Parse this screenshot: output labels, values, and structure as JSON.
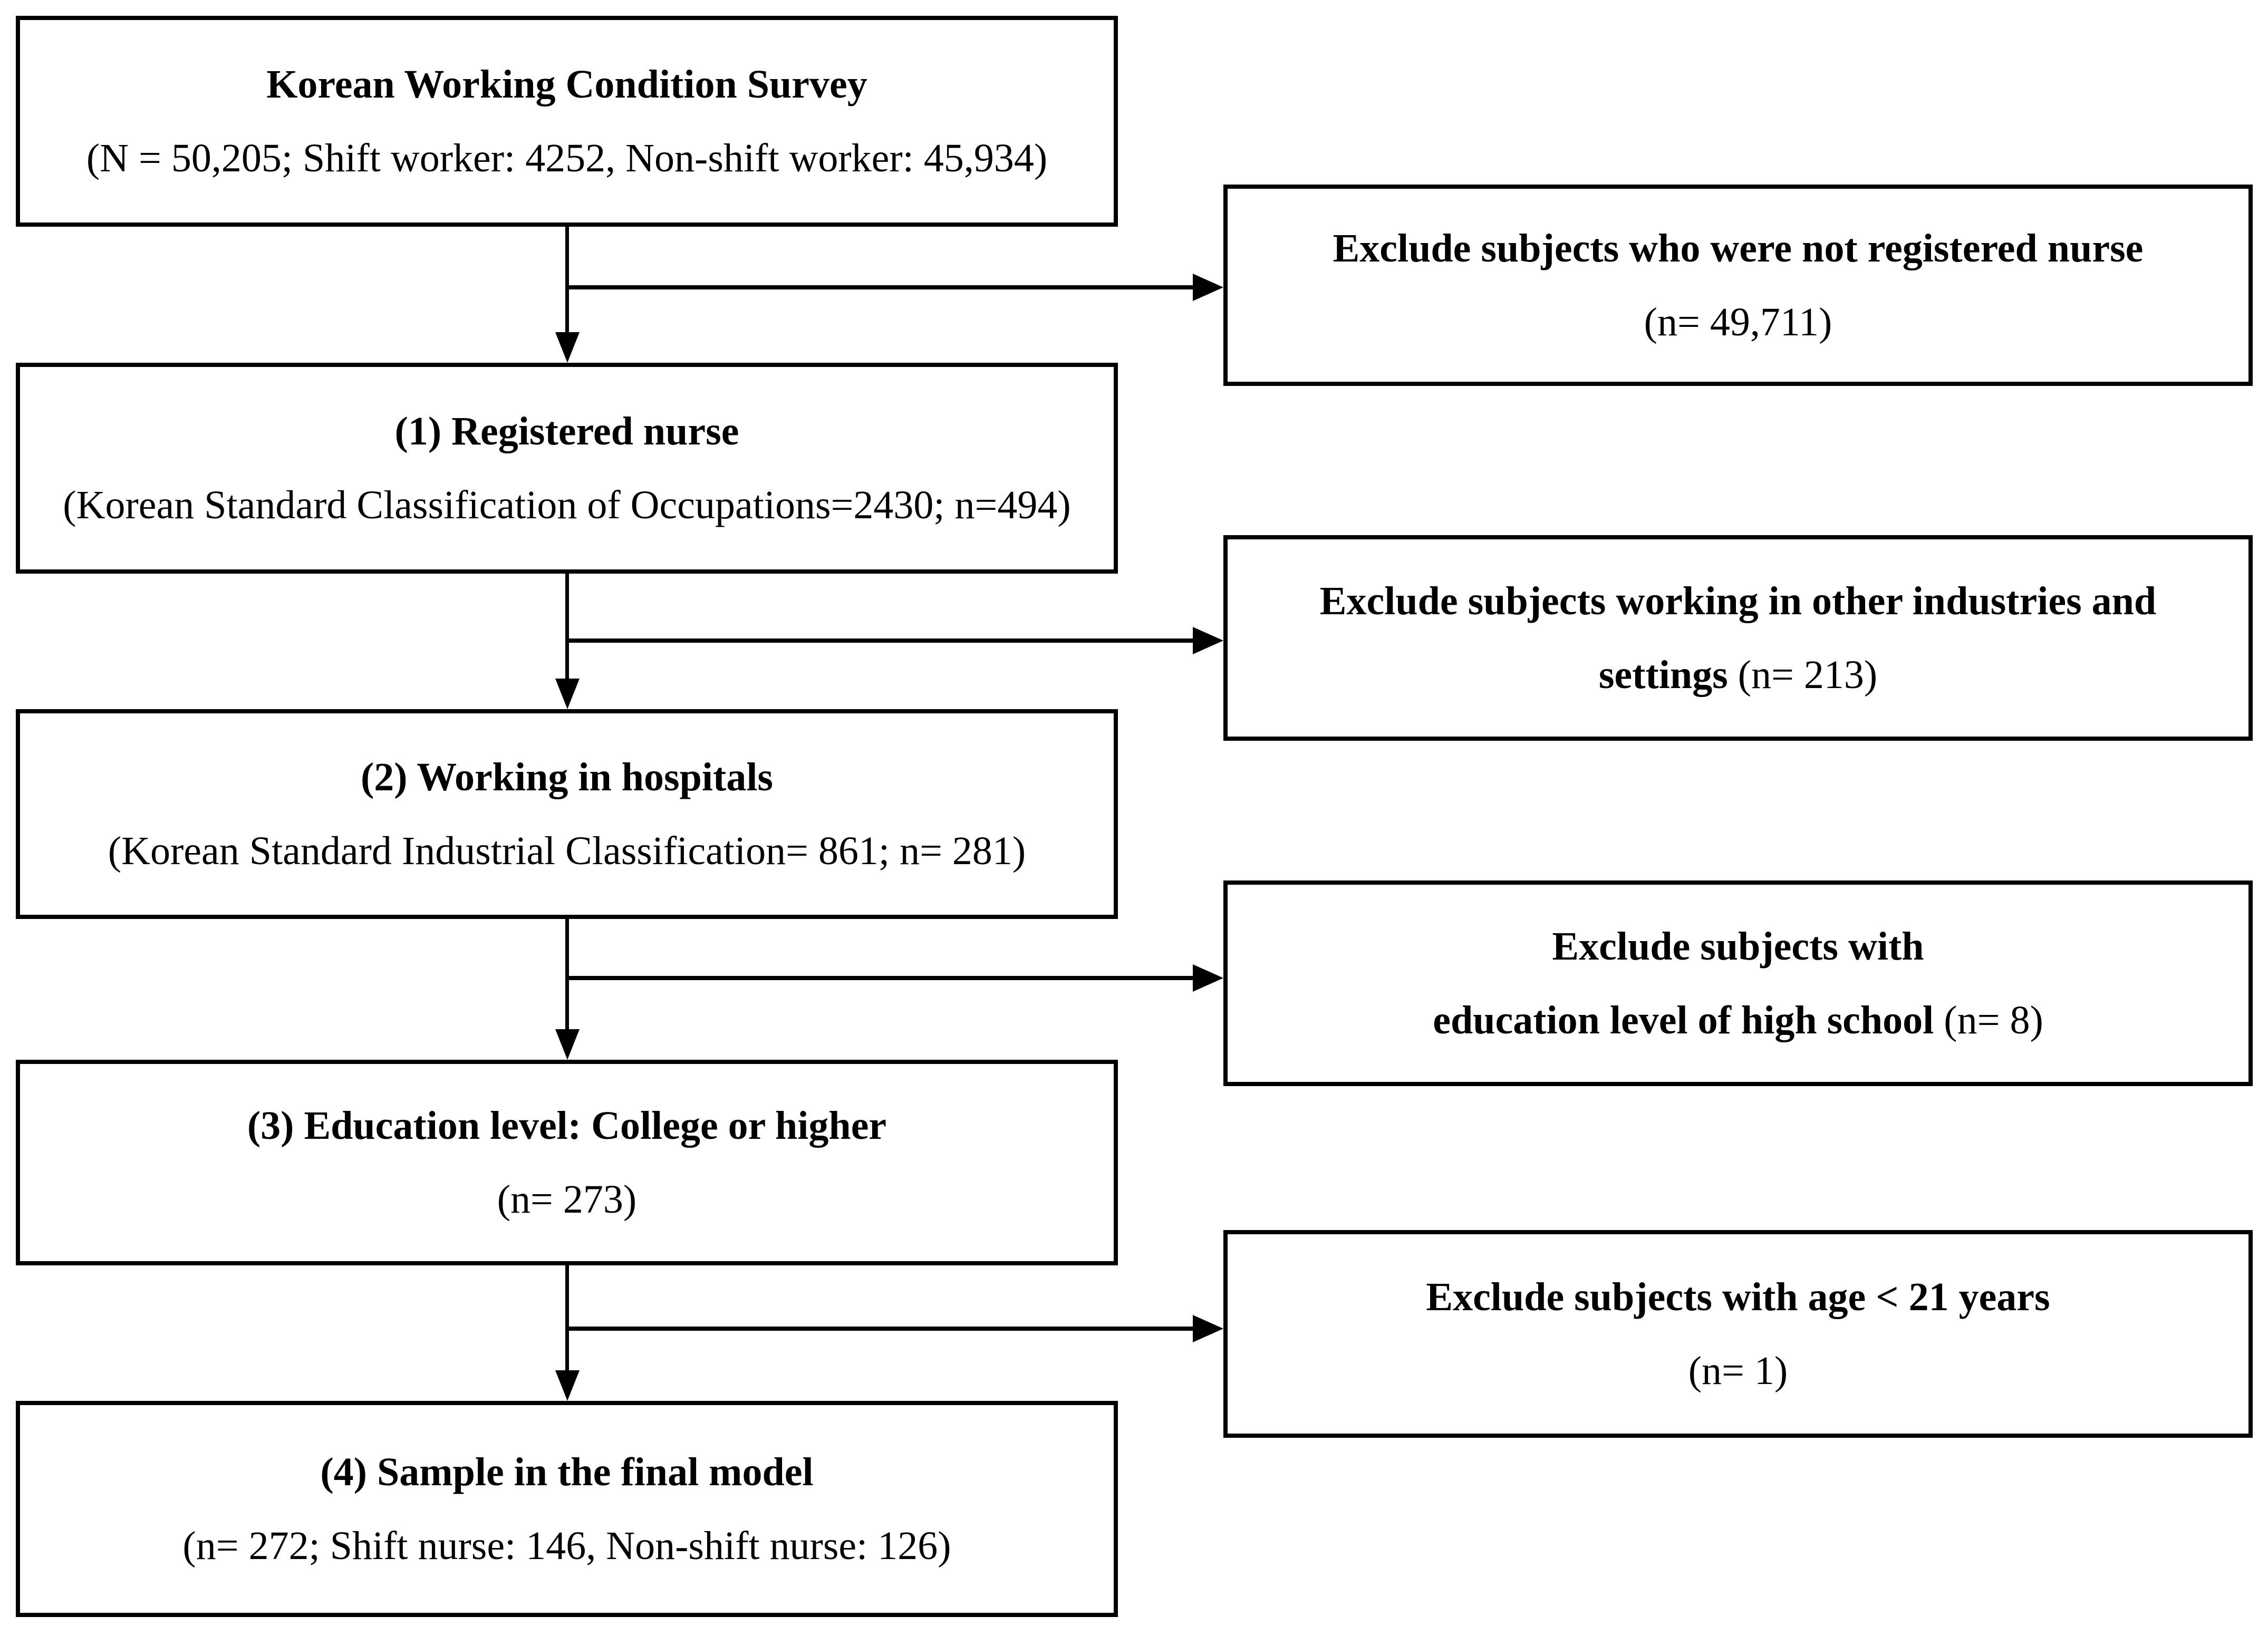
{
  "page": {
    "background_color": "#ffffff",
    "line_color": "#000000",
    "text_color": "#000000"
  },
  "flowchart": {
    "main_boxes": [
      {
        "title": "Korean Working Condition Survey",
        "subtitle": "(N = 50,205; Shift worker: 4252, Non-shift worker: 45,934)"
      },
      {
        "title": "(1) Registered nurse",
        "subtitle": "(Korean Standard Classification of Occupations=2430; n=494)"
      },
      {
        "title": "(2) Working in hospitals",
        "subtitle": "(Korean Standard Industrial Classification= 861; n= 281)"
      },
      {
        "title": "(3) Education level: College or higher",
        "subtitle": "(n= 273)"
      },
      {
        "title": "(4) Sample in the final model",
        "subtitle": "(n= 272; Shift nurse: 146, Non-shift nurse: 126)"
      }
    ],
    "exclusion_boxes": [
      {
        "line1_bold": "Exclude subjects who were not registered nurse",
        "line1_regular": "",
        "line2_bold": "",
        "line2_regular": "(n= 49,711)"
      },
      {
        "line1_bold": "Exclude subjects working in other industries and",
        "line1_regular": "",
        "line2_bold": "settings ",
        "line2_regular": "(n= 213)"
      },
      {
        "line1_bold": "Exclude subjects with",
        "line1_regular": "",
        "line2_bold": "education level of high school ",
        "line2_regular": "(n= 8)"
      },
      {
        "line1_bold": "Exclude subjects with age < 21 years",
        "line1_regular": "",
        "line2_bold": "",
        "line2_regular": "(n= 1)"
      }
    ]
  }
}
